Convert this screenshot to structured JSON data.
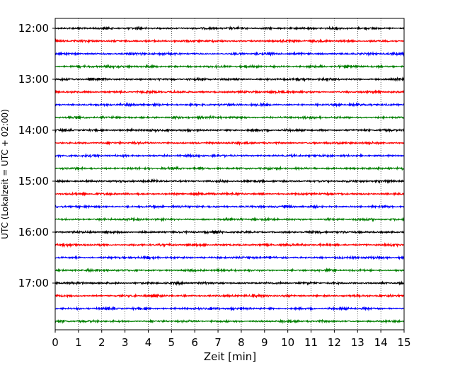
{
  "chart_data": {
    "type": "line",
    "title": "",
    "xlabel": "Zeit  [min]",
    "ylabel": "UTC (Lokalzeit = UTC + 02:00)",
    "xlim": [
      0,
      15
    ],
    "x_ticks": [
      0,
      1,
      2,
      3,
      4,
      5,
      6,
      7,
      8,
      9,
      10,
      11,
      12,
      13,
      14,
      15
    ],
    "x_tick_labels": [
      "0",
      "1",
      "2",
      "3",
      "4",
      "5",
      "6",
      "7",
      "8",
      "9",
      "10",
      "11",
      "12",
      "13",
      "14",
      "15"
    ],
    "grid": "vertical dotted lines at each minute",
    "y_tick_labels": [
      "12:00",
      "13:00",
      "14:00",
      "15:00",
      "16:00",
      "17:00"
    ],
    "trace_colors": [
      "#000000",
      "#ff0000",
      "#0000ff",
      "#007f00"
    ],
    "traces": [
      {
        "start": "12:00",
        "color": "#000000"
      },
      {
        "start": "12:15",
        "color": "#ff0000"
      },
      {
        "start": "12:30",
        "color": "#0000ff"
      },
      {
        "start": "12:45",
        "color": "#007f00"
      },
      {
        "start": "13:00",
        "color": "#000000"
      },
      {
        "start": "13:15",
        "color": "#ff0000"
      },
      {
        "start": "13:30",
        "color": "#0000ff"
      },
      {
        "start": "13:45",
        "color": "#007f00"
      },
      {
        "start": "14:00",
        "color": "#000000"
      },
      {
        "start": "14:15",
        "color": "#ff0000"
      },
      {
        "start": "14:30",
        "color": "#0000ff"
      },
      {
        "start": "14:45",
        "color": "#007f00"
      },
      {
        "start": "15:00",
        "color": "#000000"
      },
      {
        "start": "15:15",
        "color": "#ff0000"
      },
      {
        "start": "15:30",
        "color": "#0000ff"
      },
      {
        "start": "15:45",
        "color": "#007f00"
      },
      {
        "start": "16:00",
        "color": "#000000"
      },
      {
        "start": "16:15",
        "color": "#ff0000"
      },
      {
        "start": "16:30",
        "color": "#0000ff"
      },
      {
        "start": "16:45",
        "color": "#007f00"
      },
      {
        "start": "17:00",
        "color": "#000000"
      },
      {
        "start": "17:15",
        "color": "#ff0000"
      },
      {
        "start": "17:30",
        "color": "#0000ff"
      },
      {
        "start": "17:45",
        "color": "#007f00"
      }
    ]
  }
}
